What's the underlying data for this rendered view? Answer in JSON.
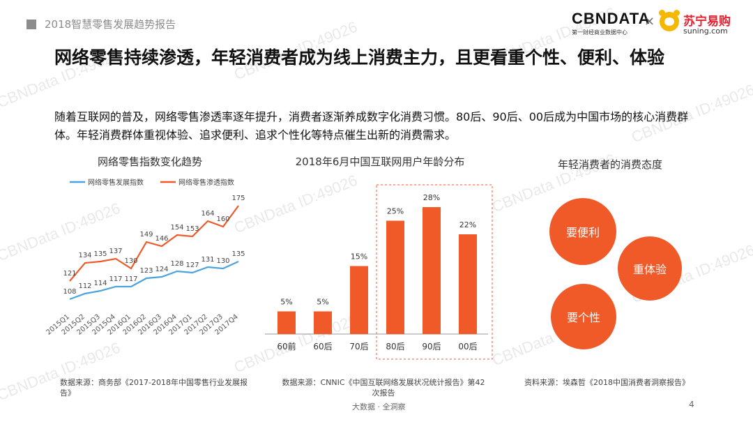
{
  "header": {
    "report_title": "2018智慧零售发展趋势报告"
  },
  "logos": {
    "cbn": "CBNDATA",
    "cbn_sub": "第一财经商业数据中心",
    "separator": "×",
    "suning_cn": "苏宁易购",
    "suning_en": "suning.com"
  },
  "main_title": "网络零售持续渗透，年轻消费者成为线上消费主力，且更看重个性、便利、体验",
  "intro": "随着互联网的普及，网络零售渗透率逐年提升，消费者逐渐养成数字化消费习惯。80后、90后、00后成为中国市场的核心消费群体。年轻消费群体重视体验、追求便利、追求个性化等特点催生出新的消费需求。",
  "watermark": "CBNData ID:49026",
  "chart_data": [
    {
      "type": "line",
      "title": "网络零售指数变化趋势",
      "categories": [
        "2015Q1",
        "2015Q2",
        "2015Q3",
        "2015Q4",
        "2016Q1",
        "2016Q2",
        "2016Q3",
        "2016Q4",
        "2017Q1",
        "2017Q2",
        "2017Q3",
        "2017Q4"
      ],
      "series": [
        {
          "name": "网络零售发展指数",
          "color": "#4aa3df",
          "values": [
            108,
            112,
            114,
            117,
            117,
            123,
            124,
            128,
            127,
            131,
            130,
            135
          ]
        },
        {
          "name": "网络零售渗透指数",
          "color": "#f05a28",
          "values": [
            121,
            134,
            135,
            137,
            130,
            149,
            146,
            154,
            153,
            164,
            160,
            175
          ]
        }
      ],
      "legend": "top-left"
    },
    {
      "type": "bar",
      "title": "2018年6月中国互联网用户年龄分布",
      "categories": [
        "60前",
        "60后",
        "70后",
        "80后",
        "90后",
        "00后"
      ],
      "values": [
        5,
        5,
        15,
        25,
        28,
        22
      ],
      "labels": [
        "5%",
        "5%",
        "15%",
        "25%",
        "28%",
        "22%"
      ],
      "color": "#f05a28",
      "highlight": [
        "80后",
        "90后",
        "00后"
      ]
    }
  ],
  "attitude": {
    "title": "年轻消费者的消费态度",
    "items": [
      "要便利",
      "重体验",
      "要个性"
    ],
    "color": "#f05a28"
  },
  "sources": {
    "left": "数据来源：商务部《2017-2018年中国零售行业发展报告》",
    "middle": "数据来源：CNNIC《中国互联网络发展状况统计报告》第42次报告",
    "right": "资料来源：埃森哲《2018中国消费者洞察报告》"
  },
  "footer": {
    "center": "大数据 · 全洞察",
    "page": "4"
  }
}
